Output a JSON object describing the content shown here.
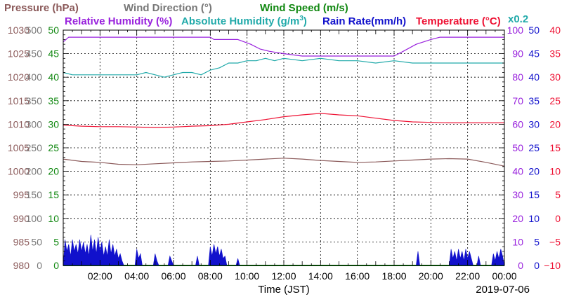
{
  "chart_data": {
    "type": "line",
    "titles": [
      {
        "text": "Pressure (hPa)",
        "color": "#8b5a5a"
      },
      {
        "text": "Wind Direction (°)",
        "color": "#777777"
      },
      {
        "text": "Wind Speed (m/s)",
        "color": "#118811"
      },
      {
        "text": "Relative Humidity (%)",
        "color": "#9922dd"
      },
      {
        "text": "Absolute Humidity (g/m",
        "sup": "3",
        "close": ")",
        "color": "#22aaaa"
      },
      {
        "text": "Rain Rate(mm/h)",
        "color": "#1111cc"
      },
      {
        "text": "Temperature (°C)",
        "color": "#ee1133"
      },
      {
        "text": "x0.2",
        "color": "#22aaaa"
      }
    ],
    "xlabel": "Time (JST)",
    "date": "2019-07-06",
    "x_ticks": [
      "02:00",
      "04:00",
      "06:00",
      "08:00",
      "10:00",
      "12:00",
      "14:00",
      "16:00",
      "18:00",
      "20:00",
      "22:00",
      "00:00"
    ],
    "xlim_hours": [
      0,
      24
    ],
    "left_axes": [
      {
        "name": "pressure",
        "color": "#8b5a5a",
        "ticks": [
          "980",
          "985",
          "990",
          "995",
          "1000",
          "1005",
          "1010",
          "1015",
          "1020",
          "1025",
          "1030"
        ]
      },
      {
        "name": "wind-direction",
        "color": "#777777",
        "ticks": [
          "0",
          "50",
          "100",
          "150",
          "200",
          "250",
          "300",
          "350",
          "400",
          "450",
          "500"
        ]
      },
      {
        "name": "wind-speed",
        "color": "#118811",
        "ticks": [
          "0",
          "5",
          "10",
          "15",
          "20",
          "25",
          "30",
          "35",
          "40",
          "45",
          "50"
        ]
      }
    ],
    "right_axes": [
      {
        "name": "humidity",
        "color": "#9922dd",
        "ticks": [
          "0",
          "10",
          "20",
          "30",
          "40",
          "50",
          "60",
          "70",
          "80",
          "90",
          "100"
        ]
      },
      {
        "name": "rain-rate",
        "color": "#1111cc",
        "ticks": [
          "0",
          "5",
          "10",
          "15",
          "20",
          "25",
          "30",
          "35",
          "40",
          "45",
          "50"
        ]
      },
      {
        "name": "temperature",
        "color": "#ee1133",
        "ticks": [
          "−10",
          "−5",
          "0",
          "5",
          "10",
          "15",
          "20",
          "25",
          "30",
          "35",
          "40"
        ]
      }
    ],
    "ylim_percent": [
      0,
      100
    ],
    "grid": true,
    "series": [
      {
        "name": "Relative Humidity",
        "color": "#9922dd",
        "unit": "%",
        "x": [
          0,
          0.3,
          8,
          8.2,
          9.5,
          10.2,
          10.7,
          11.2,
          12,
          13,
          14,
          15,
          16,
          17,
          18,
          18.5,
          19.2,
          20,
          20.5,
          21,
          22,
          23,
          24
        ],
        "y": [
          95,
          97,
          97,
          96,
          96,
          94,
          92,
          91,
          90,
          89,
          89,
          89,
          89,
          89,
          89,
          91,
          94,
          96,
          97,
          97,
          97,
          97,
          97
        ]
      },
      {
        "name": "Absolute Humidity",
        "color": "#22aaaa",
        "unit": "x0.2 g/m3",
        "x": [
          0,
          0.5,
          1,
          2,
          3,
          4,
          4.5,
          5,
          5.5,
          6,
          6.5,
          7,
          7.5,
          8,
          8.5,
          9,
          9.5,
          10,
          10.5,
          11,
          11.5,
          12,
          13,
          14,
          15,
          16,
          17,
          18,
          19,
          20,
          21,
          22,
          23,
          24
        ],
        "y": [
          82,
          81,
          81,
          81,
          81,
          81,
          82,
          81,
          80,
          81,
          82,
          82,
          81,
          83,
          84,
          86,
          86,
          87,
          87,
          88,
          87,
          88,
          87,
          88,
          87,
          87,
          86,
          87,
          86,
          86,
          86,
          86,
          86,
          86
        ]
      },
      {
        "name": "Temperature",
        "color": "#ee1133",
        "unit": "°C",
        "x": [
          0,
          1,
          2,
          3,
          4,
          5,
          6,
          7,
          8,
          9,
          10,
          11,
          12,
          13,
          14,
          15,
          16,
          17,
          18,
          19,
          20,
          21,
          22,
          23,
          24
        ],
        "y": [
          19.8,
          19.6,
          19.5,
          19.5,
          19.4,
          19.3,
          19.4,
          19.6,
          19.7,
          20.0,
          20.5,
          21.0,
          21.6,
          22.0,
          22.3,
          22.0,
          21.8,
          21.3,
          20.8,
          20.5,
          20.4,
          20.3,
          20.3,
          20.3,
          20.3
        ]
      },
      {
        "name": "Pressure",
        "color": "#8b5a5a",
        "unit": "hPa",
        "x": [
          0,
          1,
          2,
          3,
          4,
          5,
          6,
          7,
          8,
          9,
          10,
          11,
          12,
          13,
          14,
          15,
          16,
          17,
          18,
          19,
          20,
          21,
          22,
          23,
          24
        ],
        "y": [
          1002.6,
          1002.1,
          1001.9,
          1001.5,
          1001.4,
          1001.6,
          1001.8,
          1002.0,
          1002.1,
          1002.2,
          1002.4,
          1002.6,
          1002.8,
          1002.6,
          1002.3,
          1002.1,
          1001.9,
          1002.0,
          1002.2,
          1002.4,
          1002.6,
          1002.7,
          1002.6,
          1001.9,
          1001.1
        ]
      },
      {
        "name": "Wind Speed",
        "color": "#118811",
        "unit": "m/s",
        "x": [
          0,
          24
        ],
        "y": [
          0,
          0
        ]
      },
      {
        "name": "Rain Rate",
        "color": "#1111cc",
        "unit": "mm/h",
        "type": "area",
        "bursts": [
          {
            "x": [
              0,
              0.1,
              0.2,
              0.3,
              0.4,
              0.5,
              0.6,
              0.7,
              0.8,
              0.9,
              1.0,
              1.1,
              1.2,
              1.3,
              1.4,
              1.5,
              1.6,
              1.7,
              1.8,
              1.9,
              2.0,
              2.1,
              2.2,
              2.3,
              2.4,
              2.5,
              2.6,
              2.7,
              2.8,
              2.9,
              3.0,
              3.1,
              3.2,
              3.3
            ],
            "y": [
              0,
              5.5,
              3,
              4.5,
              2,
              5.5,
              3,
              4.5,
              2.5,
              5.5,
              3,
              5,
              2.5,
              4.5,
              2,
              6.5,
              3,
              5.5,
              2.5,
              6,
              3,
              5,
              2,
              4,
              2,
              5.5,
              2.5,
              4.5,
              2,
              3.5,
              1.5,
              2.5,
              1,
              0
            ]
          },
          {
            "x": [
              3.9,
              4.0,
              4.1,
              4.2,
              4.3
            ],
            "y": [
              0,
              3.5,
              1.5,
              2.5,
              0
            ]
          },
          {
            "x": [
              4.9,
              5.0,
              5.1,
              5.2
            ],
            "y": [
              0,
              2.5,
              1,
              0
            ]
          },
          {
            "x": [
              5.7,
              5.8,
              5.9,
              6.0
            ],
            "y": [
              0,
              2,
              1,
              0
            ]
          },
          {
            "x": [
              7.2,
              7.3,
              7.4
            ],
            "y": [
              0,
              2,
              0
            ]
          },
          {
            "x": [
              7.9,
              8.0,
              8.1,
              8.2,
              8.3,
              8.4,
              8.5,
              8.6,
              8.7,
              8.8,
              8.9
            ],
            "y": [
              0,
              4,
              2,
              4.5,
              2.5,
              4,
              2,
              3.5,
              1.5,
              2,
              0
            ]
          },
          {
            "x": [
              9.4,
              9.5,
              9.6
            ],
            "y": [
              0,
              1.5,
              0
            ]
          },
          {
            "x": [
              19.2,
              19.3,
              19.4
            ],
            "y": [
              0,
              3,
              0
            ]
          },
          {
            "x": [
              21.0,
              21.1,
              21.2,
              21.3,
              21.4,
              21.5,
              21.6,
              21.7,
              21.8,
              21.9,
              22.0,
              22.1,
              22.2,
              22.3
            ],
            "y": [
              0,
              3.5,
              1.5,
              3,
              1,
              3.5,
              1.5,
              3,
              1,
              3.5,
              1.5,
              3,
              1.5,
              0
            ]
          },
          {
            "x": [
              22.5,
              22.6,
              22.7
            ],
            "y": [
              0,
              2,
              0
            ]
          },
          {
            "x": [
              23.3,
              23.4,
              23.5,
              23.6,
              23.7,
              23.8,
              23.9,
              24.0
            ],
            "y": [
              0,
              2.5,
              1,
              3,
              1.5,
              3.5,
              2,
              0
            ]
          }
        ]
      }
    ]
  }
}
